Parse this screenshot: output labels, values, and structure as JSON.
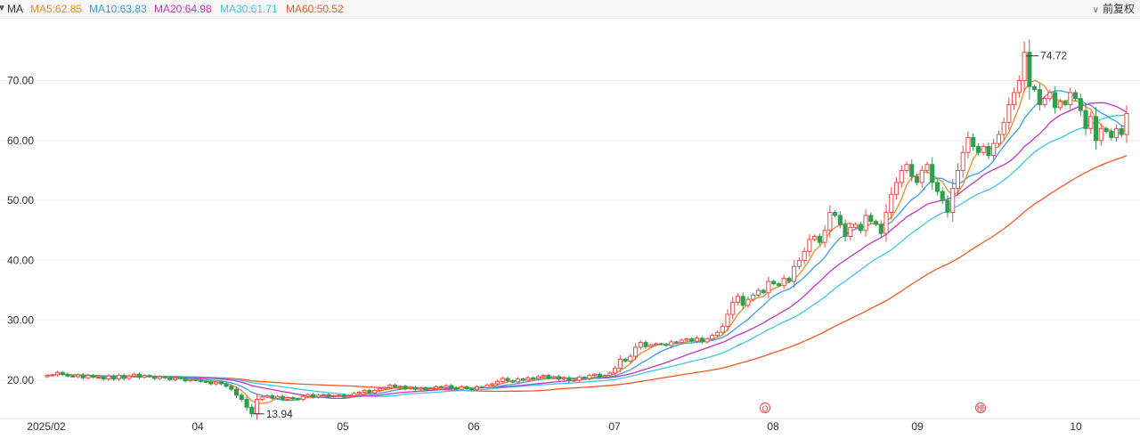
{
  "header": {
    "ma_label": "MA",
    "ma_items": [
      {
        "label": "MA5:62.85",
        "color": "#f08a24"
      },
      {
        "label": "MA10:63.83",
        "color": "#3a9ee8"
      },
      {
        "label": "MA20:64.98",
        "color": "#c236c2"
      },
      {
        "label": "MA30:61.71",
        "color": "#3cc8e0"
      },
      {
        "label": "MA60:50.52",
        "color": "#f05a28"
      }
    ],
    "adjust_label": "前复权"
  },
  "markers": [
    {
      "symbol": "Q",
      "date": "07/31"
    },
    {
      "symbol": "榜",
      "date": "09/12"
    }
  ],
  "chart_data": {
    "type": "candlestick",
    "y_ticks": [
      "20.00",
      "30.00",
      "40.00",
      "50.00",
      "60.00",
      "70.00"
    ],
    "ylim": [
      13,
      77
    ],
    "x_ticks": [
      "2025/02",
      "04",
      "05",
      "06",
      "07",
      "08",
      "09",
      "10"
    ],
    "high_annotation": {
      "label": "74.72",
      "value": 74.72
    },
    "low_annotation": {
      "label": "13.94",
      "value": 13.94
    },
    "up_color": "#e94b4b",
    "down_color": "#2f9e4f",
    "ma_series": [
      {
        "name": "MA5",
        "color": "#f08a24",
        "last": 62.85
      },
      {
        "name": "MA10",
        "color": "#3a9ee8",
        "last": 63.83
      },
      {
        "name": "MA20",
        "color": "#c236c2",
        "last": 64.98
      },
      {
        "name": "MA30",
        "color": "#3cc8e0",
        "last": 61.71
      },
      {
        "name": "MA60",
        "color": "#f05a28",
        "last": 50.52
      }
    ],
    "closes": [
      20.8,
      20.9,
      21.3,
      21.0,
      20.7,
      20.6,
      20.9,
      20.4,
      20.8,
      20.5,
      20.5,
      20.2,
      20.7,
      20.2,
      20.8,
      20.3,
      20.7,
      21.0,
      20.5,
      20.8,
      20.6,
      20.3,
      20.6,
      20.4,
      20.1,
      20.4,
      20.3,
      19.9,
      20.1,
      20.0,
      19.8,
      19.7,
      19.4,
      19.7,
      19.4,
      19.0,
      18.5,
      17.5,
      16.8,
      15.5,
      14.4,
      16.8,
      17.2,
      17.4,
      17.0,
      17.3,
      16.8,
      17.1,
      16.9,
      16.8,
      17.3,
      17.6,
      17.2,
      17.5,
      17.6,
      17.3,
      17.4,
      17.5,
      17.2,
      17.4,
      17.8,
      18.0,
      18.3,
      17.9,
      18.3,
      18.6,
      18.8,
      19.2,
      18.9,
      19.0,
      18.6,
      18.8,
      18.5,
      18.7,
      18.4,
      18.6,
      18.9,
      18.8,
      19.1,
      18.7,
      18.5,
      18.9,
      18.6,
      18.5,
      18.9,
      18.8,
      19.2,
      19.4,
      19.8,
      20.3,
      19.9,
      19.7,
      20.2,
      20.0,
      20.4,
      20.3,
      20.6,
      20.8,
      20.4,
      20.6,
      20.2,
      20.4,
      19.9,
      20.0,
      20.5,
      20.3,
      20.8,
      21.0,
      20.6,
      20.8,
      21.2,
      22.0,
      23.5,
      23.2,
      24.0,
      25.5,
      26.3,
      25.6,
      25.9,
      26.1,
      26.0,
      25.8,
      26.4,
      26.3,
      26.7,
      26.9,
      26.5,
      27.0,
      26.4,
      26.9,
      27.5,
      28.0,
      29.0,
      31.0,
      33.0,
      34.0,
      32.5,
      33.5,
      34.2,
      35.0,
      34.6,
      36.5,
      36.1,
      35.8,
      37.0,
      36.5,
      39.0,
      40.0,
      41.5,
      43.5,
      44.0,
      43.0,
      45.0,
      48.0,
      47.5,
      46.0,
      44.0,
      45.5,
      46.0,
      45.0,
      47.5,
      46.5,
      46.0,
      44.5,
      48.0,
      51.0,
      53.0,
      55.0,
      56.0,
      54.0,
      53.0,
      55.0,
      56.0,
      53.0,
      51.5,
      50.0,
      48.0,
      52.0,
      55.0,
      58.0,
      60.5,
      59.0,
      58.0,
      59.0,
      57.5,
      59.5,
      61.0,
      63.0,
      66.0,
      68.0,
      70.0,
      74.72,
      69.0,
      68.5,
      66.0,
      67.0,
      68.0,
      65.5,
      66.5,
      66.0,
      68.0,
      67.0,
      65.0,
      62.0,
      64.0,
      60.0,
      62.0,
      61.5,
      60.5,
      62.0,
      61.0,
      64.5
    ]
  }
}
